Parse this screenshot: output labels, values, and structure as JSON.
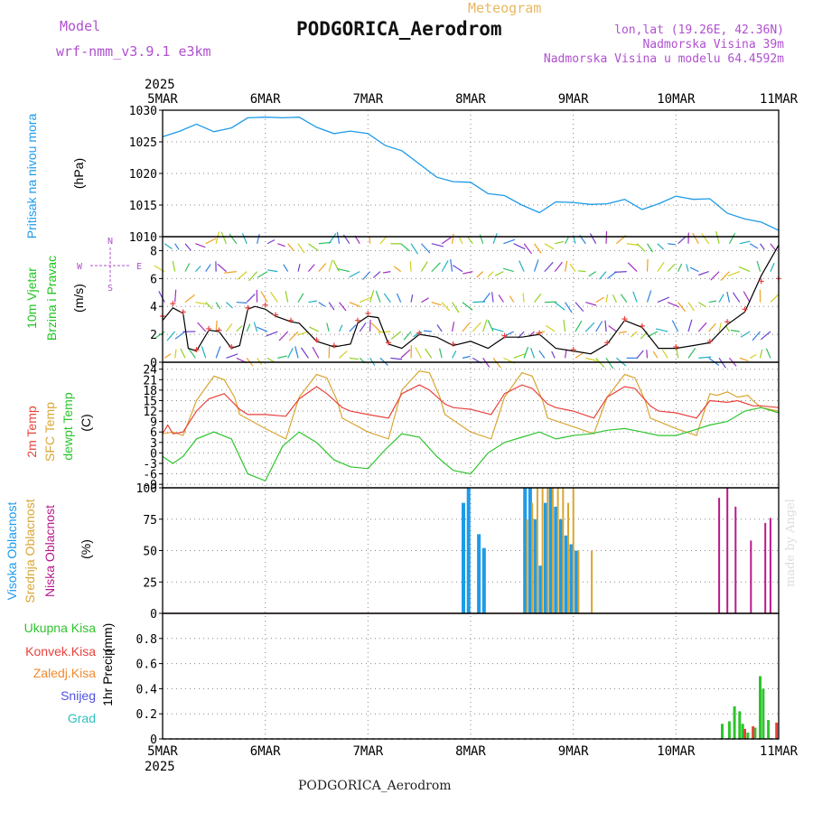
{
  "header": {
    "model_label": "Model",
    "model_name": "wrf-nmm_v3.9.1 e3km",
    "product": "Meteogram",
    "station": "PODGORICA_Aerodrom",
    "lonlat": "lon,lat (19.26E, 42.36N)",
    "elevation": "Nadmorska Visina 39m",
    "model_elevation": "Nadmorska Visina u modelu 64.4592m"
  },
  "footer": {
    "station": "PODGORICA_Aerodrom",
    "credit": "made by Angel"
  },
  "colors": {
    "pressure": "#1e9be8",
    "temp2m": "#e8413c",
    "sfctemp": "#d9a633",
    "dewpt": "#2ec42e",
    "high_cloud": "#1e9be8",
    "mid_cloud": "#d9a633",
    "low_cloud": "#b8198a",
    "total_precip": "#2ec42e",
    "conv_precip": "#e8413c",
    "frozen_precip": "#f08a2d",
    "snow": "#5050e0",
    "hail": "#30c0c0",
    "grid": "#888888",
    "black": "#000000"
  },
  "time_axis": {
    "year": "2025",
    "labels": [
      "5MAR",
      "6MAR",
      "7MAR",
      "8MAR",
      "9MAR",
      "10MAR",
      "11MAR"
    ],
    "start_day": 5,
    "end_day": 11
  },
  "chart_data": [
    {
      "type": "line",
      "id": "pressure",
      "ylabel": [
        "Pritisak na nivou mora",
        "(hPa)"
      ],
      "ylim": [
        1010,
        1030
      ],
      "yticks": [
        1010,
        1015,
        1020,
        1025,
        1030
      ],
      "series": [
        {
          "name": "Sea level pressure",
          "x": [
            5.0,
            5.17,
            5.33,
            5.5,
            5.67,
            5.83,
            6.0,
            6.17,
            6.33,
            6.5,
            6.67,
            6.83,
            7.0,
            7.17,
            7.33,
            7.5,
            7.67,
            7.83,
            8.0,
            8.17,
            8.33,
            8.5,
            8.67,
            8.83,
            9.0,
            9.17,
            9.33,
            9.5,
            9.67,
            9.83,
            10.0,
            10.17,
            10.33,
            10.5,
            10.67,
            10.83,
            11.0
          ],
          "y": [
            1025.8,
            1026.7,
            1027.8,
            1026.6,
            1027.2,
            1028.8,
            1028.9,
            1028.8,
            1028.9,
            1027.3,
            1026.3,
            1026.7,
            1026.3,
            1024.4,
            1023.6,
            1021.5,
            1019.4,
            1018.7,
            1018.6,
            1016.8,
            1016.5,
            1015.0,
            1013.8,
            1015.5,
            1015.4,
            1015.1,
            1015.2,
            1015.9,
            1014.3,
            1015.2,
            1016.4,
            1015.9,
            1016.0,
            1013.7,
            1012.8,
            1012.3,
            1011.0
          ]
        }
      ]
    },
    {
      "type": "line",
      "id": "wind",
      "ylabel": [
        "10m Vjetar",
        "Brzina i Pravac",
        "(m/s)"
      ],
      "compass": {
        "n": "N",
        "s": "S",
        "w": "W",
        "e": "E"
      },
      "ylim": [
        0,
        9
      ],
      "yticks": [
        0,
        2,
        4,
        6,
        8
      ],
      "series": [
        {
          "name": "Wind speed",
          "x": [
            5.0,
            5.1,
            5.2,
            5.25,
            5.33,
            5.45,
            5.55,
            5.67,
            5.75,
            5.83,
            5.9,
            6.0,
            6.1,
            6.25,
            6.33,
            6.5,
            6.67,
            6.83,
            6.9,
            7.0,
            7.1,
            7.2,
            7.33,
            7.5,
            7.67,
            7.83,
            8.0,
            8.17,
            8.33,
            8.5,
            8.67,
            8.83,
            9.0,
            9.17,
            9.33,
            9.5,
            9.67,
            9.83,
            10.0,
            10.17,
            10.33,
            10.5,
            10.67,
            10.83,
            11.0
          ],
          "y": [
            3.0,
            3.9,
            3.5,
            1.0,
            0.8,
            2.3,
            2.2,
            1.0,
            1.2,
            3.8,
            4.0,
            3.8,
            3.3,
            2.9,
            2.8,
            1.5,
            1.1,
            1.3,
            2.8,
            3.3,
            3.2,
            1.3,
            1.0,
            2.0,
            1.8,
            1.2,
            1.5,
            1.0,
            1.8,
            1.8,
            2.0,
            1.0,
            0.8,
            0.6,
            1.3,
            3.0,
            2.5,
            1.0,
            1.0,
            1.2,
            1.4,
            2.7,
            3.6,
            6.2,
            8.4
          ]
        },
        {
          "name": "Gust",
          "x": [
            5.0,
            5.1,
            5.2,
            5.33,
            5.45,
            5.55,
            5.67,
            5.83,
            6.0,
            6.1,
            6.25,
            6.5,
            6.67,
            6.9,
            7.0,
            7.2,
            7.5,
            7.83,
            8.33,
            8.67,
            9.0,
            9.33,
            9.5,
            9.67,
            10.0,
            10.33,
            10.5,
            10.67,
            10.83,
            11.0
          ],
          "y": [
            3.3,
            4.2,
            3.6,
            0.9,
            2.4,
            2.3,
            1.1,
            3.9,
            4.1,
            3.4,
            3.0,
            1.6,
            1.2,
            3.0,
            3.5,
            1.4,
            2.1,
            1.3,
            1.9,
            2.1,
            0.9,
            1.4,
            3.1,
            2.6,
            1.1,
            1.5,
            2.9,
            3.8,
            5.8,
            6.0
          ]
        }
      ],
      "arrow_rows": [
        0.3,
        2.2,
        4.3,
        6.5,
        8.5
      ]
    },
    {
      "type": "line",
      "id": "temperature",
      "ylabel": [
        "2m Temp",
        "SFC Temp",
        "dewpt Temp",
        "(C)"
      ],
      "ylim": [
        -10,
        26
      ],
      "yticks": [
        -9,
        -6,
        -3,
        0,
        3,
        6,
        9,
        12,
        15,
        18,
        21,
        24
      ],
      "series": [
        {
          "name": "2m Temp",
          "x": [
            5.0,
            5.05,
            5.1,
            5.2,
            5.33,
            5.45,
            5.6,
            5.75,
            5.83,
            6.0,
            6.2,
            6.33,
            6.5,
            6.6,
            6.75,
            6.83,
            7.0,
            7.2,
            7.33,
            7.5,
            7.6,
            7.75,
            7.83,
            8.0,
            8.2,
            8.33,
            8.5,
            8.6,
            8.75,
            8.83,
            9.0,
            9.2,
            9.33,
            9.5,
            9.6,
            9.75,
            9.83,
            10.0,
            10.2,
            10.33,
            10.5,
            10.6,
            10.75,
            10.83,
            11.0
          ],
          "y": [
            5.5,
            8.0,
            5.5,
            6.0,
            12.0,
            15.5,
            17.0,
            12.5,
            11.0,
            11.0,
            10.5,
            15.5,
            19.0,
            17.0,
            13.0,
            12.0,
            11.0,
            10.0,
            17.0,
            19.5,
            18.0,
            14.0,
            13.0,
            12.5,
            11.0,
            17.0,
            19.5,
            18.5,
            14.0,
            13.0,
            12.0,
            10.0,
            16.0,
            19.0,
            18.5,
            13.5,
            12.0,
            11.5,
            10.0,
            15.0,
            14.5,
            15.0,
            13.5,
            13.5,
            13.0
          ]
        },
        {
          "name": "SFC Temp",
          "x": [
            5.0,
            5.1,
            5.2,
            5.33,
            5.5,
            5.6,
            5.7,
            5.75,
            6.0,
            6.2,
            6.33,
            6.5,
            6.6,
            6.7,
            6.75,
            7.0,
            7.2,
            7.33,
            7.5,
            7.6,
            7.7,
            7.75,
            8.0,
            8.2,
            8.33,
            8.5,
            8.6,
            8.7,
            8.75,
            9.0,
            9.2,
            9.33,
            9.5,
            9.6,
            9.7,
            9.75,
            10.0,
            10.2,
            10.33,
            10.4,
            10.5,
            10.6,
            10.7,
            10.75,
            10.83,
            11.0
          ],
          "y": [
            5.5,
            6.0,
            5.0,
            15.0,
            22.0,
            21.0,
            16.0,
            11.0,
            7.0,
            4.0,
            16.0,
            22.5,
            21.5,
            15.0,
            10.0,
            6.0,
            4.0,
            18.0,
            23.5,
            23.0,
            16.0,
            11.0,
            6.0,
            4.0,
            16.0,
            23.0,
            22.0,
            15.0,
            10.0,
            7.5,
            5.5,
            16.0,
            22.5,
            21.5,
            15.0,
            10.0,
            7.0,
            5.0,
            17.0,
            16.5,
            17.5,
            16.0,
            16.5,
            15.0,
            13.0,
            12.0
          ]
        },
        {
          "name": "dewpt Temp",
          "x": [
            5.0,
            5.1,
            5.2,
            5.33,
            5.5,
            5.67,
            5.83,
            6.0,
            6.17,
            6.33,
            6.5,
            6.67,
            6.83,
            7.0,
            7.17,
            7.33,
            7.5,
            7.67,
            7.83,
            8.0,
            8.17,
            8.33,
            8.5,
            8.67,
            8.83,
            9.0,
            9.17,
            9.33,
            9.5,
            9.67,
            9.83,
            10.0,
            10.17,
            10.33,
            10.5,
            10.67,
            10.83,
            11.0
          ],
          "y": [
            -1.0,
            -3.0,
            -1.0,
            4.0,
            6.0,
            4.0,
            -6.0,
            -8.0,
            2.0,
            6.0,
            3.0,
            -2.0,
            -4.0,
            -4.5,
            1.0,
            5.5,
            4.5,
            -1.0,
            -5.0,
            -6.0,
            0.0,
            3.0,
            4.5,
            6.0,
            4.0,
            5.0,
            5.5,
            6.5,
            7.0,
            6.0,
            5.0,
            5.0,
            6.5,
            8.0,
            9.0,
            12.0,
            13.0,
            11.5
          ]
        }
      ]
    },
    {
      "type": "bar",
      "id": "cloud",
      "ylabel": [
        "Visoka Oblacnost",
        "Srednja Oblacnost",
        "Niska Oblacnost",
        "(%)"
      ],
      "ylim": [
        0,
        100
      ],
      "yticks": [
        0,
        25,
        50,
        75,
        100
      ],
      "series": [
        {
          "name": "High cloud",
          "x": [
            7.93,
            7.98,
            8.08,
            8.13,
            8.53,
            8.58,
            8.63,
            8.68,
            8.73,
            8.78,
            8.83,
            8.88,
            8.93,
            8.98,
            9.03
          ],
          "values": [
            88,
            100,
            63,
            52,
            100,
            100,
            75,
            38,
            88,
            100,
            85,
            75,
            62,
            55,
            50
          ]
        },
        {
          "name": "Mid cloud",
          "x": [
            8.55,
            8.6,
            8.65,
            8.7,
            8.75,
            8.8,
            8.85,
            8.9,
            8.95,
            9.0,
            9.05,
            9.18
          ],
          "values": [
            75,
            88,
            100,
            100,
            100,
            100,
            100,
            100,
            88,
            100,
            50,
            50
          ]
        },
        {
          "name": "Low cloud",
          "x": [
            10.42,
            10.5,
            10.58,
            10.73,
            10.87,
            10.92
          ],
          "values": [
            92,
            100,
            85,
            58,
            72,
            76
          ]
        }
      ]
    },
    {
      "type": "bar",
      "id": "precip",
      "ylabel": [
        "1hr Precip",
        "(mm)"
      ],
      "legend": [
        "Ukupna Kisa",
        "Konvek.Kisa",
        "Zaledj.Kisa",
        "Snijeg",
        "Grad"
      ],
      "ylim": [
        0,
        1.0
      ],
      "yticks": [
        0,
        0.2,
        0.4,
        0.6,
        0.8
      ],
      "series": [
        {
          "name": "Ukupna Kisa",
          "x": [
            10.45,
            10.52,
            10.57,
            10.62,
            10.65,
            10.7,
            10.77,
            10.82,
            10.85,
            10.9
          ],
          "values": [
            0.12,
            0.14,
            0.26,
            0.22,
            0.12,
            0.05,
            0.09,
            0.5,
            0.4,
            0.15
          ]
        },
        {
          "name": "Konvek.Kisa",
          "x": [
            10.67,
            10.75,
            10.98
          ],
          "values": [
            0.08,
            0.1,
            0.13
          ]
        }
      ]
    }
  ]
}
